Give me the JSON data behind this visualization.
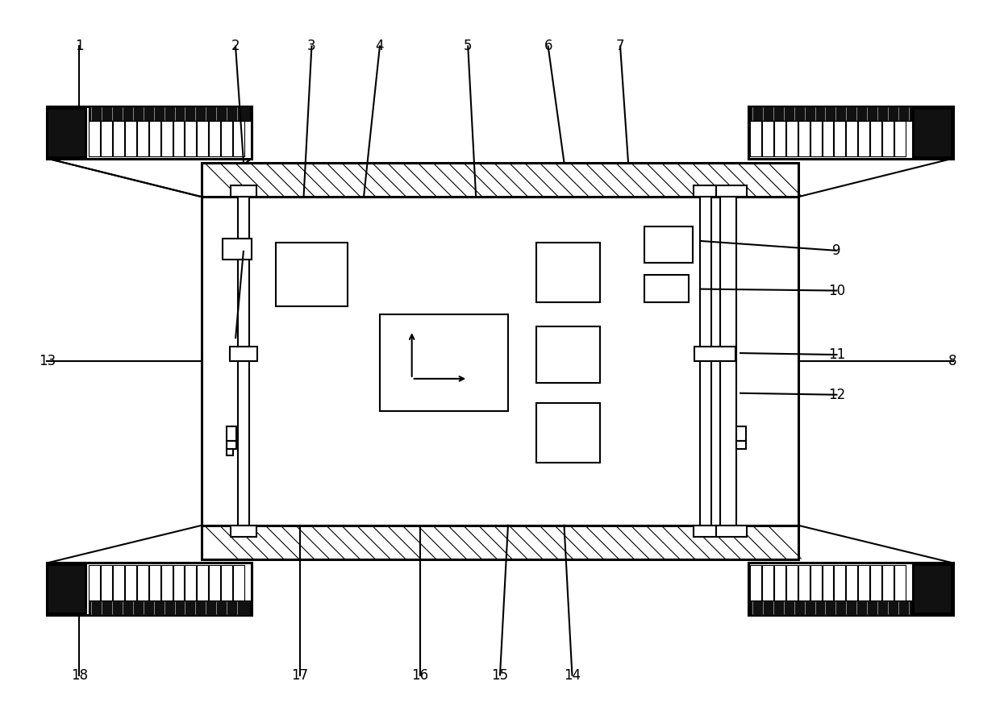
{
  "bg_color": "#ffffff",
  "lw": 1.5,
  "tlw": 2.2,
  "fig_width": 12.4,
  "fig_height": 8.97
}
